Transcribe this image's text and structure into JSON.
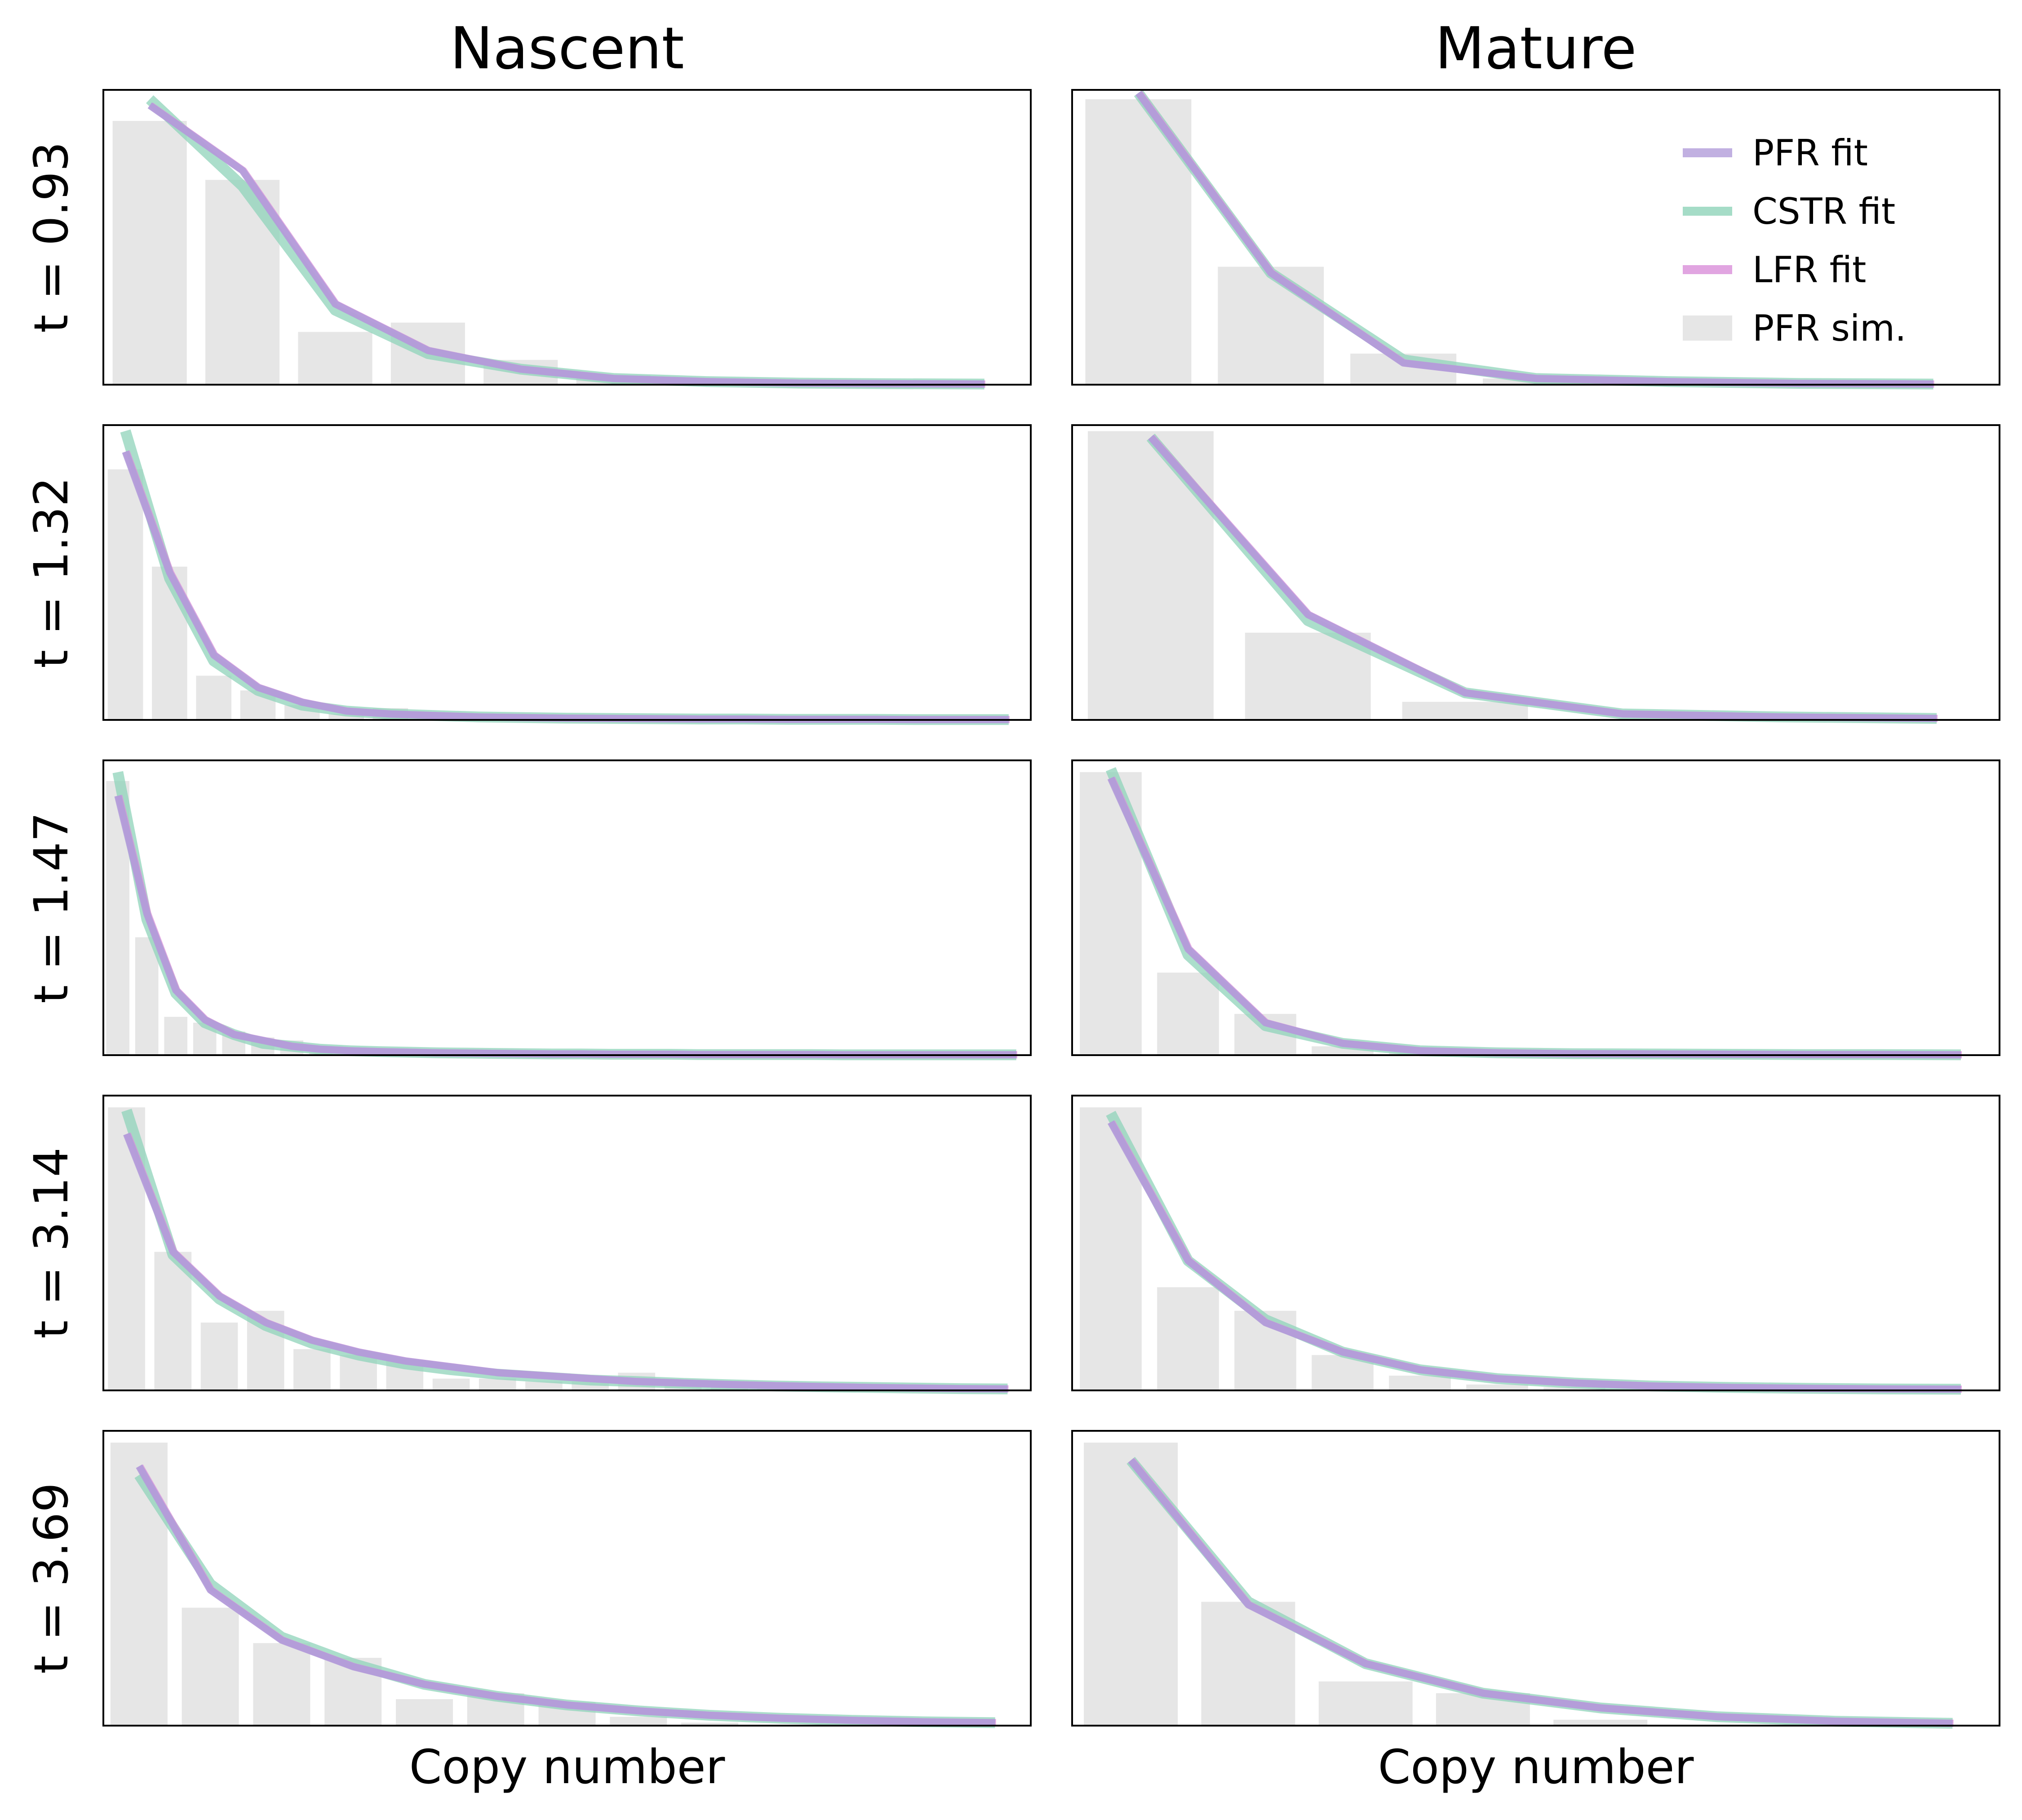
{
  "chart_data": {
    "type": "bar",
    "columns": [
      "Nascent",
      "Mature"
    ],
    "rows": [
      "t = 0.93",
      "t = 1.32",
      "t = 1.47",
      "t = 3.14",
      "t = 3.69"
    ],
    "xlabel": "Copy number",
    "ylabel": "",
    "grid": false,
    "legend_placement": "top-right",
    "legend": [
      {
        "label": "PFR fit",
        "color": "#b19cd9",
        "kind": "line"
      },
      {
        "label": "CSTR fit",
        "color": "#8fd3b9",
        "kind": "line"
      },
      {
        "label": "LFR fit",
        "color": "#d98fd9",
        "kind": "line"
      },
      {
        "label": "PFR sim.",
        "color": "#e6e6e6",
        "kind": "bar"
      }
    ],
    "colors": {
      "bars": "#e6e6e6",
      "pfr": "#b19cd9",
      "cstr": "#8fd3b9",
      "lfr": "#d98fd9",
      "frame": "#000000"
    },
    "panels": [
      {
        "row": 0,
        "col": 0,
        "xmax": 9.5,
        "ymax": 0.95,
        "bars": [
          0.85,
          0.66,
          0.17,
          0.2,
          0.08,
          0.03,
          0.01,
          0.0,
          0.0
        ],
        "pfr": [
          0.9,
          0.69,
          0.26,
          0.11,
          0.05,
          0.02,
          0.01,
          0.005,
          0.003,
          0.002
        ],
        "cstr": [
          0.92,
          0.64,
          0.24,
          0.1,
          0.05,
          0.02,
          0.01,
          0.005,
          0.003,
          0.002
        ],
        "lfr": [
          0.9,
          0.69,
          0.26,
          0.11,
          0.05,
          0.02,
          0.01,
          0.005,
          0.003,
          0.002
        ]
      },
      {
        "row": 0,
        "col": 1,
        "xmax": 6.5,
        "ymax": 0.95,
        "bars": [
          0.92,
          0.38,
          0.1,
          0.02,
          0.01,
          0.0,
          0.0
        ],
        "pfr": [
          0.94,
          0.36,
          0.07,
          0.02,
          0.01,
          0.004,
          0.002
        ],
        "cstr": [
          0.94,
          0.36,
          0.08,
          0.02,
          0.01,
          0.004,
          0.002
        ],
        "lfr": [
          0.94,
          0.36,
          0.07,
          0.02,
          0.01,
          0.004,
          0.002
        ]
      },
      {
        "row": 1,
        "col": 0,
        "xmax": 20.5,
        "ymax": 1.0,
        "bars": [
          0.85,
          0.52,
          0.15,
          0.1,
          0.05,
          0.02,
          0.04,
          0.01,
          0.01,
          0.005,
          0.005,
          0.0,
          0.0,
          0.0,
          0.0,
          0.0,
          0.0,
          0.0,
          0.0,
          0.0
        ],
        "pfr": [
          0.91,
          0.5,
          0.22,
          0.11,
          0.06,
          0.03,
          0.02,
          0.015,
          0.01,
          0.008,
          0.006,
          0.005,
          0.004,
          0.003,
          0.003,
          0.002,
          0.002,
          0.002,
          0.001,
          0.001,
          0.001
        ],
        "cstr": [
          0.98,
          0.48,
          0.2,
          0.1,
          0.05,
          0.03,
          0.02,
          0.015,
          0.01,
          0.008,
          0.006,
          0.005,
          0.004,
          0.003,
          0.003,
          0.002,
          0.002,
          0.002,
          0.001,
          0.001,
          0.001
        ],
        "lfr": [
          0.91,
          0.5,
          0.22,
          0.11,
          0.06,
          0.03,
          0.02,
          0.015,
          0.01,
          0.008,
          0.006,
          0.005,
          0.004,
          0.003,
          0.003,
          0.002,
          0.002,
          0.002,
          0.001,
          0.001,
          0.001
        ]
      },
      {
        "row": 1,
        "col": 1,
        "xmax": 5.4,
        "ymax": 0.98,
        "bars": [
          0.96,
          0.29,
          0.06,
          0.0,
          0.0,
          0.0
        ],
        "pfr": [
          0.94,
          0.35,
          0.09,
          0.02,
          0.01,
          0.005
        ],
        "cstr": [
          0.94,
          0.33,
          0.09,
          0.02,
          0.01,
          0.005
        ],
        "lfr": [
          0.94,
          0.35,
          0.09,
          0.02,
          0.01,
          0.005
        ]
      },
      {
        "row": 2,
        "col": 0,
        "xmax": 31.5,
        "ymax": 1.0,
        "bars": [
          0.93,
          0.4,
          0.13,
          0.11,
          0.08,
          0.06,
          0.05,
          0.01,
          0.0,
          0.0,
          0.0,
          0.0,
          0.0,
          0.0,
          0.0,
          0.0,
          0.0,
          0.0,
          0.0,
          0.0,
          0.0,
          0.0,
          0.0,
          0.0,
          0.0,
          0.0,
          0.0,
          0.0,
          0.0,
          0.0,
          0.0
        ],
        "pfr": [
          0.88,
          0.48,
          0.22,
          0.12,
          0.07,
          0.05,
          0.03,
          0.02,
          0.015,
          0.012,
          0.01,
          0.008,
          0.007,
          0.006,
          0.005,
          0.004,
          0.004,
          0.003,
          0.003,
          0.003,
          0.002,
          0.002,
          0.002,
          0.002,
          0.002,
          0.001,
          0.001,
          0.001,
          0.001,
          0.001,
          0.001,
          0.001
        ],
        "cstr": [
          0.96,
          0.46,
          0.21,
          0.11,
          0.07,
          0.04,
          0.03,
          0.02,
          0.015,
          0.012,
          0.01,
          0.008,
          0.007,
          0.006,
          0.005,
          0.004,
          0.004,
          0.003,
          0.003,
          0.003,
          0.002,
          0.002,
          0.002,
          0.002,
          0.002,
          0.001,
          0.001,
          0.001,
          0.001,
          0.001,
          0.001,
          0.001
        ],
        "lfr": [
          0.88,
          0.48,
          0.22,
          0.12,
          0.07,
          0.05,
          0.03,
          0.02,
          0.015,
          0.012,
          0.01,
          0.008,
          0.007,
          0.006,
          0.005,
          0.004,
          0.004,
          0.003,
          0.003,
          0.003,
          0.002,
          0.002,
          0.002,
          0.002,
          0.002,
          0.001,
          0.001,
          0.001,
          0.001,
          0.001,
          0.001,
          0.001
        ]
      },
      {
        "row": 2,
        "col": 1,
        "xmax": 11.5,
        "ymax": 1.0,
        "bars": [
          0.96,
          0.28,
          0.14,
          0.03,
          0.01,
          0.0,
          0.0,
          0.0,
          0.0,
          0.0,
          0.0
        ],
        "pfr": [
          0.94,
          0.36,
          0.11,
          0.04,
          0.015,
          0.008,
          0.005,
          0.004,
          0.003,
          0.002,
          0.002,
          0.001
        ],
        "cstr": [
          0.97,
          0.34,
          0.1,
          0.04,
          0.015,
          0.008,
          0.005,
          0.004,
          0.003,
          0.002,
          0.002,
          0.001
        ],
        "lfr": [
          0.94,
          0.36,
          0.11,
          0.04,
          0.015,
          0.008,
          0.005,
          0.004,
          0.003,
          0.002,
          0.002,
          0.001
        ]
      },
      {
        "row": 3,
        "col": 0,
        "xmax": 19.5,
        "ymax": 1.0,
        "bars": [
          0.96,
          0.47,
          0.23,
          0.27,
          0.14,
          0.12,
          0.1,
          0.04,
          0.04,
          0.03,
          0.03,
          0.06,
          0.02,
          0.01,
          0.01,
          0.0,
          0.0,
          0.0,
          0.0
        ],
        "pfr": [
          0.87,
          0.47,
          0.32,
          0.23,
          0.17,
          0.13,
          0.1,
          0.08,
          0.06,
          0.05,
          0.04,
          0.03,
          0.025,
          0.02,
          0.016,
          0.013,
          0.01,
          0.008,
          0.006,
          0.005
        ],
        "cstr": [
          0.95,
          0.46,
          0.31,
          0.22,
          0.16,
          0.12,
          0.09,
          0.07,
          0.055,
          0.045,
          0.035,
          0.03,
          0.024,
          0.019,
          0.015,
          0.012,
          0.01,
          0.008,
          0.006,
          0.005
        ],
        "lfr": [
          0.87,
          0.47,
          0.32,
          0.23,
          0.17,
          0.13,
          0.1,
          0.08,
          0.06,
          0.05,
          0.04,
          0.03,
          0.025,
          0.02,
          0.016,
          0.013,
          0.01,
          0.008,
          0.006,
          0.005
        ]
      },
      {
        "row": 3,
        "col": 1,
        "xmax": 11.5,
        "ymax": 1.0,
        "bars": [
          0.96,
          0.35,
          0.27,
          0.12,
          0.05,
          0.02,
          0.01,
          0.0,
          0.0,
          0.0,
          0.0
        ],
        "pfr": [
          0.91,
          0.44,
          0.23,
          0.13,
          0.07,
          0.04,
          0.025,
          0.015,
          0.01,
          0.007,
          0.005,
          0.004
        ],
        "cstr": [
          0.94,
          0.44,
          0.24,
          0.13,
          0.07,
          0.04,
          0.025,
          0.015,
          0.01,
          0.007,
          0.005,
          0.004
        ],
        "lfr": [
          0.91,
          0.44,
          0.23,
          0.13,
          0.07,
          0.04,
          0.025,
          0.015,
          0.01,
          0.007,
          0.005,
          0.004
        ]
      },
      {
        "row": 4,
        "col": 0,
        "xmax": 12.5,
        "ymax": 1.0,
        "bars": [
          0.96,
          0.4,
          0.28,
          0.23,
          0.09,
          0.11,
          0.08,
          0.03,
          0.01,
          0.0,
          0.0,
          0.0
        ],
        "pfr": [
          0.88,
          0.46,
          0.29,
          0.2,
          0.14,
          0.1,
          0.07,
          0.05,
          0.035,
          0.025,
          0.018,
          0.013,
          0.01
        ],
        "cstr": [
          0.85,
          0.48,
          0.3,
          0.21,
          0.14,
          0.1,
          0.07,
          0.05,
          0.035,
          0.025,
          0.018,
          0.013,
          0.01
        ],
        "lfr": [
          0.88,
          0.46,
          0.29,
          0.2,
          0.14,
          0.1,
          0.07,
          0.05,
          0.035,
          0.025,
          0.018,
          0.013,
          0.01
        ]
      },
      {
        "row": 4,
        "col": 1,
        "xmax": 7.4,
        "ymax": 1.0,
        "bars": [
          0.96,
          0.42,
          0.15,
          0.11,
          0.02,
          0.0,
          0.0
        ],
        "pfr": [
          0.9,
          0.41,
          0.21,
          0.11,
          0.06,
          0.03,
          0.015,
          0.008
        ],
        "cstr": [
          0.9,
          0.42,
          0.21,
          0.11,
          0.06,
          0.03,
          0.015,
          0.008
        ],
        "lfr": [
          0.9,
          0.41,
          0.21,
          0.11,
          0.06,
          0.03,
          0.015,
          0.008
        ]
      }
    ]
  }
}
